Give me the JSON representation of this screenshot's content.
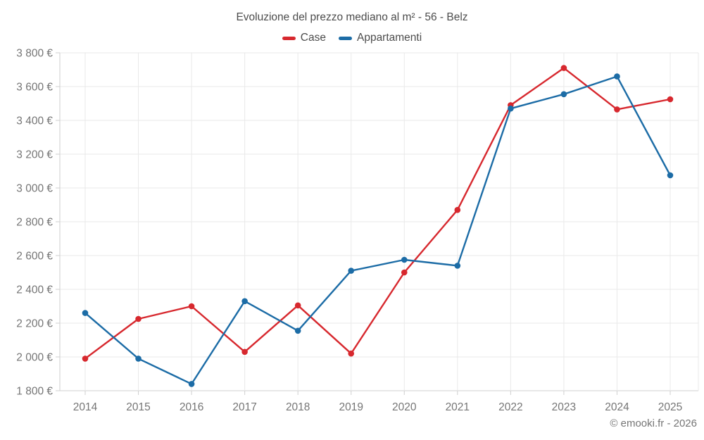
{
  "header": {
    "title": "Evoluzione del prezzo mediano al m² - 56 - Belz"
  },
  "legend": [
    {
      "label": "Case",
      "color": "#d7282e"
    },
    {
      "label": "Appartamenti",
      "color": "#1c6ca6"
    }
  ],
  "footer": {
    "credit": "© emooki.fr - 2026"
  },
  "chart_data": {
    "type": "line",
    "title": "Evoluzione del prezzo mediano al m² - 56 - Belz",
    "categories": [
      "2014",
      "2015",
      "2016",
      "2017",
      "2018",
      "2019",
      "2020",
      "2021",
      "2022",
      "2023",
      "2024",
      "2025"
    ],
    "series": [
      {
        "name": "Case",
        "color": "#d7282e",
        "values": [
          1990,
          2225,
          2300,
          2030,
          2305,
          2020,
          2500,
          2870,
          3490,
          3710,
          3465,
          3525
        ]
      },
      {
        "name": "Appartamenti",
        "color": "#1c6ca6",
        "values": [
          2260,
          1990,
          1840,
          2330,
          2155,
          2510,
          2575,
          2540,
          3470,
          3555,
          3660,
          3075
        ]
      }
    ],
    "xlabel": "",
    "ylabel": "",
    "ylim": [
      1800,
      3800
    ],
    "ytick_step": 200,
    "ytick_labels": [
      "1 800 €",
      "2 000 €",
      "2 200 €",
      "2 400 €",
      "2 600 €",
      "2 800 €",
      "3 000 €",
      "3 200 €",
      "3 400 €",
      "3 600 €",
      "3 800 €"
    ],
    "grid": true,
    "legend_position": "top",
    "marker": "circle"
  }
}
